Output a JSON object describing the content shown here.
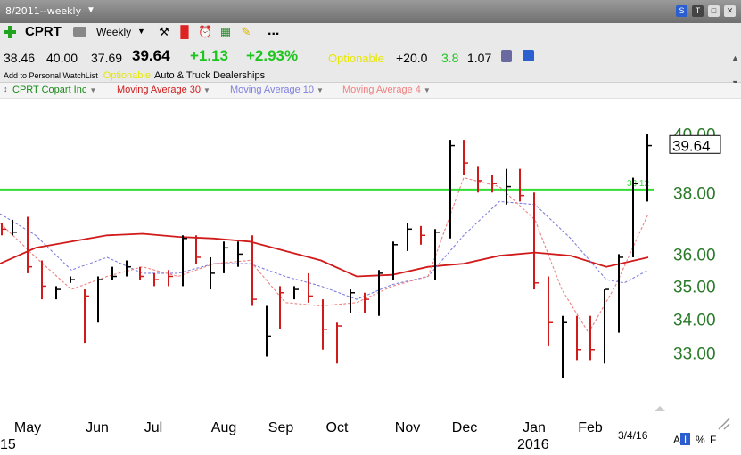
{
  "window": {
    "title": "8/2011--weekly",
    "icons": [
      "s-icon",
      "t-icon",
      "minimize-icon",
      "close-icon"
    ]
  },
  "toolbar": {
    "symbol": "CPRT",
    "period": "Weekly",
    "more_label": "..."
  },
  "quote": {
    "open": "38.46",
    "high": "40.00",
    "low": "37.69",
    "last": "39.64",
    "change": "+1.13",
    "change_pct": "+2.93%",
    "optionable": "Optionable",
    "rs_change": "+20.0",
    "rs_value": "3.8",
    "ratio": "1.07",
    "add_watchlist": "Add to Personal WatchList",
    "industry_optionable": "Optionable",
    "industry": "Auto & Truck Dealerships"
  },
  "legend": {
    "items": [
      {
        "label": "CPRT Copart Inc",
        "color": "#1a8a1a"
      },
      {
        "label": "Moving Average 30",
        "color": "#d11a1a"
      },
      {
        "label": "Moving Average 10",
        "color": "#7f7fe0"
      },
      {
        "label": "Moving Average 4",
        "color": "#f08080"
      }
    ]
  },
  "chart_data": {
    "type": "line",
    "title": "CPRT Copart Inc",
    "x_labels": [
      "May",
      "Jun",
      "Jul",
      "Aug",
      "Sep",
      "Oct",
      "Nov",
      "Dec",
      "Jan",
      "Feb"
    ],
    "year_labels": [
      "15",
      "2016"
    ],
    "y_ticks": [
      "40.00",
      "38.00",
      "36.00",
      "35.00",
      "34.00",
      "33.00"
    ],
    "y_ticks_values": [
      40,
      38,
      36,
      35,
      34,
      33
    ],
    "last_price_label": "39.64",
    "hline": {
      "value": 38.1,
      "label": "38.12",
      "color": "#33dd33"
    },
    "date_label": "3/4/16",
    "scale": "log",
    "bars": [
      {
        "x": 2,
        "h": 37.0,
        "l": 36.6,
        "c": 36.8,
        "up": false
      },
      {
        "x": 14,
        "h": 37.1,
        "l": 36.6,
        "c": 36.7,
        "up": true
      },
      {
        "x": 31,
        "h": 37.2,
        "l": 35.4,
        "c": 35.6,
        "up": false
      },
      {
        "x": 47,
        "h": 35.8,
        "l": 34.6,
        "c": 35.0,
        "up": false
      },
      {
        "x": 63,
        "h": 35.0,
        "l": 34.6,
        "c": 34.9,
        "up": true
      },
      {
        "x": 79,
        "h": 35.3,
        "l": 35.1,
        "c": 35.2,
        "up": true
      },
      {
        "x": 95,
        "h": 34.9,
        "l": 33.3,
        "c": 34.7,
        "up": false
      },
      {
        "x": 110,
        "h": 35.3,
        "l": 33.9,
        "c": 35.2,
        "up": true
      },
      {
        "x": 126,
        "h": 35.6,
        "l": 35.2,
        "c": 35.3,
        "up": true
      },
      {
        "x": 142,
        "h": 35.8,
        "l": 35.3,
        "c": 35.6,
        "up": true
      },
      {
        "x": 157,
        "h": 35.6,
        "l": 35.2,
        "c": 35.3,
        "up": false
      },
      {
        "x": 173,
        "h": 35.4,
        "l": 35.0,
        "c": 35.2,
        "up": false
      },
      {
        "x": 189,
        "h": 35.5,
        "l": 35.0,
        "c": 35.3,
        "up": false
      },
      {
        "x": 205,
        "h": 36.6,
        "l": 35.0,
        "c": 36.5,
        "up": true
      },
      {
        "x": 220,
        "h": 36.6,
        "l": 35.7,
        "c": 35.9,
        "up": false
      },
      {
        "x": 236,
        "h": 35.9,
        "l": 34.9,
        "c": 35.4,
        "up": true
      },
      {
        "x": 251,
        "h": 36.4,
        "l": 35.4,
        "c": 36.2,
        "up": true
      },
      {
        "x": 267,
        "h": 36.4,
        "l": 35.6,
        "c": 36.0,
        "up": true
      },
      {
        "x": 283,
        "h": 36.6,
        "l": 34.4,
        "c": 34.6,
        "up": false
      },
      {
        "x": 299,
        "h": 34.4,
        "l": 32.9,
        "c": 33.5,
        "up": true
      },
      {
        "x": 314,
        "h": 35.0,
        "l": 33.7,
        "c": 34.8,
        "up": false
      },
      {
        "x": 330,
        "h": 35.0,
        "l": 34.6,
        "c": 34.9,
        "up": true
      },
      {
        "x": 346,
        "h": 35.4,
        "l": 34.5,
        "c": 34.7,
        "up": false
      },
      {
        "x": 362,
        "h": 34.6,
        "l": 33.1,
        "c": 33.7,
        "up": false
      },
      {
        "x": 378,
        "h": 33.9,
        "l": 32.7,
        "c": 33.8,
        "up": false
      },
      {
        "x": 393,
        "h": 34.9,
        "l": 34.2,
        "c": 34.8,
        "up": true
      },
      {
        "x": 409,
        "h": 34.8,
        "l": 34.2,
        "c": 34.6,
        "up": false
      },
      {
        "x": 425,
        "h": 35.5,
        "l": 34.1,
        "c": 35.4,
        "up": true
      },
      {
        "x": 441,
        "h": 36.4,
        "l": 35.2,
        "c": 36.3,
        "up": true
      },
      {
        "x": 457,
        "h": 37.0,
        "l": 36.1,
        "c": 36.8,
        "up": true
      },
      {
        "x": 472,
        "h": 36.9,
        "l": 36.3,
        "c": 36.6,
        "up": false
      },
      {
        "x": 488,
        "h": 36.8,
        "l": 35.2,
        "c": 36.7,
        "up": true
      },
      {
        "x": 505,
        "h": 39.8,
        "l": 36.5,
        "c": 39.6,
        "up": true
      },
      {
        "x": 520,
        "h": 39.8,
        "l": 38.6,
        "c": 39.0,
        "up": false
      },
      {
        "x": 536,
        "h": 38.9,
        "l": 38.0,
        "c": 38.4,
        "up": false
      },
      {
        "x": 552,
        "h": 38.6,
        "l": 38.0,
        "c": 38.3,
        "up": false
      },
      {
        "x": 568,
        "h": 38.8,
        "l": 37.6,
        "c": 38.2,
        "up": true
      },
      {
        "x": 583,
        "h": 38.8,
        "l": 37.7,
        "c": 37.9,
        "up": false
      },
      {
        "x": 599,
        "h": 38.0,
        "l": 34.9,
        "c": 35.1,
        "up": false
      },
      {
        "x": 615,
        "h": 35.3,
        "l": 33.2,
        "c": 33.9,
        "up": false
      },
      {
        "x": 631,
        "h": 34.1,
        "l": 32.3,
        "c": 33.9,
        "up": true
      },
      {
        "x": 647,
        "h": 34.1,
        "l": 32.8,
        "c": 33.1,
        "up": false
      },
      {
        "x": 662,
        "h": 34.1,
        "l": 32.8,
        "c": 33.1,
        "up": false
      },
      {
        "x": 678,
        "h": 34.9,
        "l": 32.7,
        "c": 34.9,
        "up": true
      },
      {
        "x": 694,
        "h": 36.0,
        "l": 33.6,
        "c": 35.9,
        "up": true
      },
      {
        "x": 710,
        "h": 38.5,
        "l": 35.9,
        "c": 38.3,
        "up": true
      },
      {
        "x": 726,
        "h": 40.0,
        "l": 37.7,
        "c": 39.6,
        "up": true
      }
    ],
    "series": [
      {
        "name": "Moving Average 30",
        "color": "#d11a1a",
        "x": [
          0,
          40,
          80,
          120,
          160,
          200,
          240,
          280,
          320,
          360,
          400,
          440,
          480,
          520,
          560,
          600,
          640,
          680,
          727
        ],
        "values": [
          35.7,
          36.2,
          36.4,
          36.6,
          36.65,
          36.55,
          36.5,
          36.4,
          36.1,
          35.8,
          35.3,
          35.35,
          35.6,
          35.7,
          35.95,
          36.05,
          35.95,
          35.6,
          35.9
        ]
      },
      {
        "name": "Moving Average 10",
        "color": "#7f7fe0",
        "x": [
          0,
          40,
          80,
          120,
          160,
          200,
          240,
          280,
          320,
          360,
          400,
          440,
          480,
          520,
          560,
          600,
          640,
          680,
          700,
          727
        ],
        "values": [
          37.3,
          36.6,
          35.5,
          35.9,
          35.4,
          35.4,
          35.7,
          35.7,
          35.3,
          35.0,
          34.6,
          35.05,
          35.3,
          36.6,
          37.7,
          37.6,
          36.5,
          35.2,
          35.1,
          35.5
        ]
      },
      {
        "name": "Moving Average 4",
        "color": "#f08080",
        "x": [
          0,
          40,
          80,
          120,
          160,
          200,
          240,
          280,
          320,
          360,
          400,
          440,
          480,
          520,
          560,
          600,
          630,
          660,
          690,
          727
        ],
        "values": [
          37.0,
          35.9,
          34.9,
          35.3,
          35.6,
          35.3,
          35.7,
          35.8,
          34.5,
          34.4,
          34.5,
          35.0,
          35.3,
          38.5,
          38.2,
          37.1,
          34.9,
          33.6,
          35.0,
          37.3
        ]
      }
    ],
    "ylim": [
      32.2,
      40.4
    ],
    "grid": false
  }
}
